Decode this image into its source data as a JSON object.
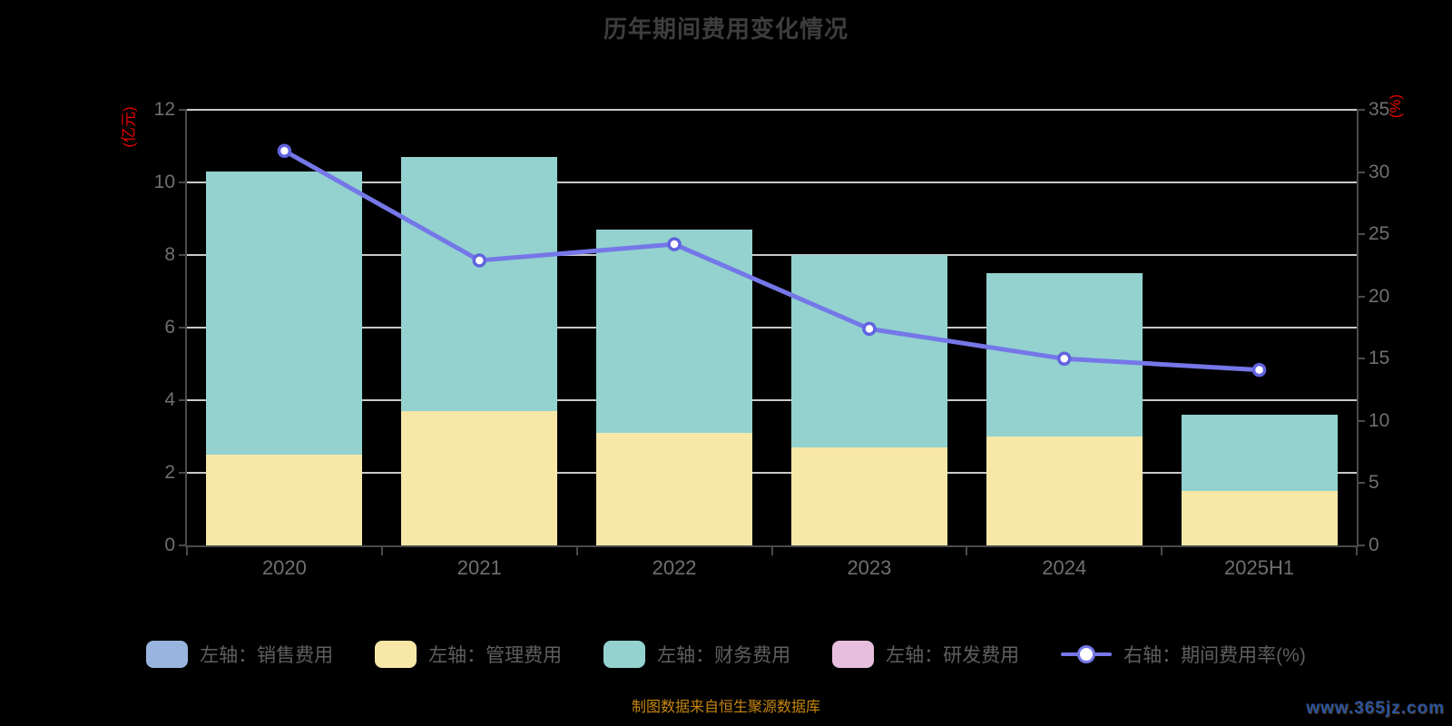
{
  "title": "历年期间费用变化情况",
  "axes": {
    "left": {
      "name": "(亿元)",
      "color": "#e60000",
      "ticks": [
        0,
        2,
        4,
        6,
        8,
        10,
        12
      ],
      "max": 12
    },
    "right": {
      "name": "(%)",
      "color": "#e60000",
      "ticks": [
        0,
        5,
        10,
        15,
        20,
        25,
        30,
        35
      ],
      "max": 35
    }
  },
  "legend": [
    {
      "label": "左轴：销售费用",
      "color": "#9ab4e0",
      "icon": "swatch"
    },
    {
      "label": "左轴：管理费用",
      "color": "#f8e8a8",
      "icon": "swatch"
    },
    {
      "label": "左轴：财务费用",
      "color": "#93d2cf",
      "icon": "swatch"
    },
    {
      "label": "左轴：研发费用",
      "color": "#e8bede",
      "icon": "swatch"
    },
    {
      "label": "右轴：期间费用率(%)",
      "color": "#7577e8",
      "icon": "line-marker"
    }
  ],
  "chart_data": {
    "type": "bar",
    "subtype": "stacked-bars-with-line",
    "categories": [
      "2020",
      "2021",
      "2022",
      "2023",
      "2024",
      "2025H1"
    ],
    "series": [
      {
        "name": "销售费用",
        "type": "bar",
        "axis": "left",
        "color": "#9ab4e0",
        "values": [
          0,
          0,
          0,
          0,
          0,
          0
        ]
      },
      {
        "name": "管理费用",
        "type": "bar",
        "axis": "left",
        "color": "#f8e8a8",
        "values": [
          2.5,
          3.7,
          3.1,
          2.7,
          3.0,
          1.5
        ]
      },
      {
        "name": "财务费用",
        "type": "bar",
        "axis": "left",
        "color": "#93d2cf",
        "values": [
          7.8,
          7.0,
          5.6,
          5.3,
          4.5,
          2.1
        ]
      },
      {
        "name": "研发费用",
        "type": "bar",
        "axis": "left",
        "color": "#e8bede",
        "values": [
          0,
          0,
          0,
          0,
          0,
          0
        ]
      },
      {
        "name": "期间费用率(%)",
        "type": "line",
        "axis": "right",
        "color": "#7577e8",
        "values": [
          31.7,
          22.9,
          24.2,
          17.4,
          15.0,
          14.1
        ],
        "marker": {
          "fill": "#ffffff",
          "stroke": "#6163df"
        }
      }
    ],
    "title": "历年期间费用变化情况",
    "xlabel": "",
    "ylabel_left": "(亿元)",
    "ylabel_right": "(%)",
    "ylim_left": [
      0,
      12
    ],
    "ylim_right": [
      0,
      35
    ],
    "grid": true,
    "gridline_color": "#c9c9c9",
    "legend_position": "bottom"
  },
  "footer": {
    "source": "制图数据来自恒生聚源数据库",
    "watermark": "www.365jz.com"
  }
}
